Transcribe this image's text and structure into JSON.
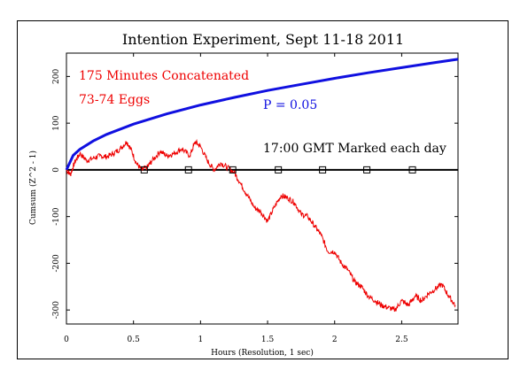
{
  "chart_data": {
    "type": "line",
    "title": "Intention Experiment, Sept 11-18 2011",
    "xlabel": "Hours (Resolution, 1 sec)",
    "ylabel": "Cumsum (Z^2 - 1)",
    "xlim": [
      0,
      2.92
    ],
    "ylim": [
      -330,
      250
    ],
    "x_ticks": [
      "0",
      "0.5",
      "1",
      "1.5",
      "2",
      "2.5"
    ],
    "y_ticks": [
      "-300",
      "-200",
      "-100",
      "0",
      "100",
      "200"
    ],
    "annotations": {
      "minutes": "175 Minutes Concatenated",
      "eggs": "73-74 Eggs",
      "pvalue": "P = 0.05",
      "marks": "17:00 GMT Marked each day"
    },
    "colors": {
      "cumsum": "#ee0000",
      "envelope": "#1010e0",
      "axis": "#000000"
    },
    "envelope_p05": {
      "name": "P = 0.05",
      "x": [
        0,
        0.05,
        0.1,
        0.2,
        0.3,
        0.5,
        0.75,
        1.0,
        1.25,
        1.5,
        1.75,
        2.0,
        2.25,
        2.5,
        2.75,
        2.92
      ],
      "y": [
        0,
        31,
        44,
        62,
        76,
        98,
        120,
        139,
        155,
        170,
        183,
        196,
        208,
        219,
        230,
        237
      ]
    },
    "cumsum": {
      "name": "Cumsum",
      "x": [
        0,
        0.03,
        0.06,
        0.1,
        0.15,
        0.2,
        0.25,
        0.3,
        0.35,
        0.4,
        0.45,
        0.48,
        0.52,
        0.56,
        0.6,
        0.64,
        0.7,
        0.75,
        0.8,
        0.86,
        0.92,
        0.96,
        1.0,
        1.05,
        1.1,
        1.15,
        1.2,
        1.25,
        1.3,
        1.35,
        1.4,
        1.45,
        1.5,
        1.55,
        1.6,
        1.65,
        1.7,
        1.75,
        1.8,
        1.85,
        1.9,
        1.95,
        2.0,
        2.05,
        2.1,
        2.15,
        2.2,
        2.25,
        2.3,
        2.35,
        2.4,
        2.45,
        2.5,
        2.55,
        2.6,
        2.65,
        2.7,
        2.75,
        2.8,
        2.85,
        2.9
      ],
      "y": [
        0,
        -10,
        15,
        35,
        20,
        25,
        30,
        28,
        35,
        45,
        60,
        45,
        15,
        0,
        5,
        20,
        40,
        30,
        35,
        45,
        30,
        60,
        50,
        20,
        0,
        15,
        5,
        -5,
        -30,
        -55,
        -80,
        -90,
        -110,
        -80,
        -55,
        -60,
        -70,
        -95,
        -100,
        -120,
        -140,
        -175,
        -175,
        -200,
        -215,
        -240,
        -250,
        -270,
        -280,
        -290,
        -295,
        -300,
        -280,
        -290,
        -270,
        -280,
        -265,
        -255,
        -245,
        -270,
        -290
      ]
    },
    "daily_marks_x": [
      0.58,
      0.91,
      1.24,
      1.58,
      1.91,
      2.24,
      2.58
    ]
  }
}
